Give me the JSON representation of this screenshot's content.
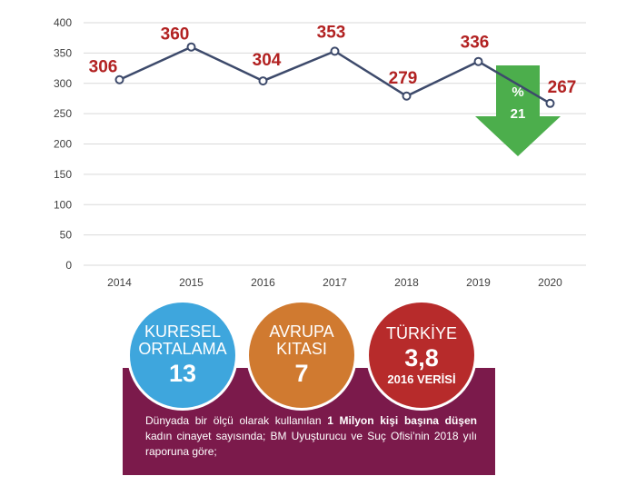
{
  "chart_data": {
    "type": "line",
    "categories": [
      "2014",
      "2015",
      "2016",
      "2017",
      "2018",
      "2019",
      "2020"
    ],
    "series": [
      {
        "values": [
          306,
          360,
          304,
          353,
          279,
          336,
          267
        ]
      }
    ],
    "data_labels": [
      "306",
      "360",
      "304",
      "353",
      "279",
      "336",
      "267"
    ],
    "yticks": [
      "0",
      "50",
      "100",
      "150",
      "200",
      "250",
      "300",
      "350",
      "400"
    ],
    "ylim": [
      0,
      400
    ],
    "grid": true,
    "line_color": "#3d4a6b",
    "label_color": "#b22222",
    "annotation": {
      "line1": "%",
      "line2": "21",
      "color": "#4cae4c"
    }
  },
  "circles": [
    {
      "label": "KURESEL\nORTALAMA",
      "value": "13",
      "sub": "",
      "color": "#3ea6dd"
    },
    {
      "label": "AVRUPA\nKITASI",
      "value": "7",
      "sub": "",
      "color": "#d07a30"
    },
    {
      "label": "TÜRKİYE",
      "value": "3,8",
      "sub": "2016 VERİSİ",
      "color": "#b72b2b"
    }
  ],
  "panel": {
    "text_a": "Dünyada bir ölçü olarak kullanılan ",
    "text_b": "1 Milyon kişi başına düşen",
    "text_c": " kadın cinayet sayısında; BM Uyuşturucu ve Suç Ofisi’nin 2018 yılı raporuna göre;",
    "color": "#7b1a4b"
  }
}
